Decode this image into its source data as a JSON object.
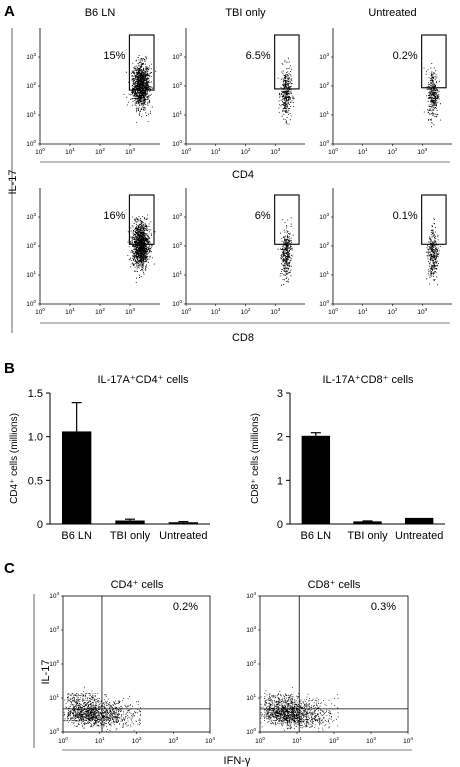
{
  "panels": {
    "a": "A",
    "b": "B",
    "c": "C"
  },
  "chart_data": [
    {
      "type": "scatter",
      "panel": "A",
      "conditions": [
        "B6 LN",
        "TBI only",
        "Untreated"
      ],
      "shared_ylabel": "IL-17",
      "rows": [
        {
          "xlabel": "CD4",
          "percentages": [
            "15%",
            "6.5%",
            "0.2%"
          ]
        },
        {
          "xlabel": "CD8",
          "percentages": [
            "16%",
            "6%",
            "0.1%"
          ]
        }
      ],
      "x_ticks": [
        "10",
        "10",
        "10",
        "10"
      ],
      "x_tick_exponents": [
        "0",
        "1",
        "2",
        "3"
      ],
      "y_ticks": [
        "10",
        "10",
        "10",
        "10"
      ],
      "y_tick_exponents": [
        "0",
        "1",
        "2",
        "3"
      ],
      "x_scale": "log",
      "y_scale": "log"
    },
    {
      "type": "bar",
      "panel": "B",
      "title": "IL-17A⁺CD4⁺ cells",
      "ylabel": "CD4⁺ cells (millions)",
      "categories": [
        "B6 LN",
        "TBI only",
        "Untreated"
      ],
      "values": [
        1.06,
        0.04,
        0.02
      ],
      "errors": [
        0.33,
        0.015,
        0.008
      ],
      "ylim": [
        0,
        1.5
      ],
      "yticks": [
        "0",
        "0.5",
        "1.0",
        "1.5"
      ]
    },
    {
      "type": "bar",
      "panel": "B",
      "title": "IL-17A⁺CD8⁺ cells",
      "ylabel": "CD8⁺ cells (millions)",
      "categories": [
        "B6 LN",
        "TBI only",
        "Untreated"
      ],
      "values": [
        2.02,
        0.06,
        0.14
      ],
      "errors": [
        0.07,
        0.01,
        0.0
      ],
      "ylim": [
        0,
        3
      ],
      "yticks": [
        "0",
        "1",
        "2",
        "3"
      ]
    },
    {
      "type": "scatter",
      "panel": "C",
      "titles": [
        "CD4⁺ cells",
        "CD8⁺ cells"
      ],
      "quadrant_percentages": [
        "0.2%",
        "0.3%"
      ],
      "xlabel": "IFN-γ",
      "ylabel": "IL-17",
      "x_ticks": [
        "10",
        "10",
        "10",
        "10",
        "10"
      ],
      "x_tick_exponents": [
        "0",
        "1",
        "2",
        "3",
        "4"
      ],
      "y_ticks": [
        "10",
        "10",
        "10",
        "10",
        "10"
      ],
      "y_tick_exponents": [
        "0",
        "1",
        "2",
        "3",
        "4"
      ],
      "x_scale": "log",
      "y_scale": "log"
    }
  ]
}
